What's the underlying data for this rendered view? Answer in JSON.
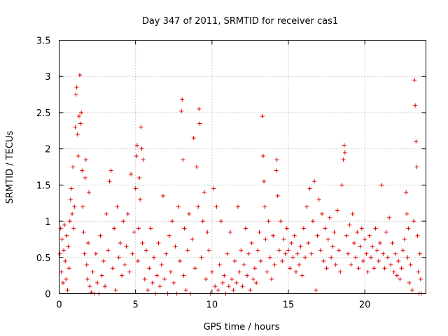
{
  "chart_data": {
    "type": "scatter",
    "title": "Day 347 of 2011, SRMTID for receiver cas1",
    "xlabel": "GPS time / hours",
    "ylabel": "SRMTID / TECUs",
    "xlim": [
      0,
      24
    ],
    "ylim": [
      0,
      3.5
    ],
    "x_ticks": [
      0,
      5,
      10,
      15,
      20
    ],
    "x_tick_labels": [
      "0",
      "5",
      "10",
      "15",
      "20"
    ],
    "y_ticks": [
      0,
      0.5,
      1,
      1.5,
      2,
      2.5,
      3,
      3.5
    ],
    "y_tick_labels": [
      "0",
      "0.5",
      "1",
      "1.5",
      "2",
      "2.5",
      "3",
      "3.5"
    ],
    "grid": true,
    "marker": "+",
    "series": [
      {
        "name": "SRMTID",
        "color": "#e00000",
        "points": [
          [
            0.05,
            0.55
          ],
          [
            0.1,
            0.9
          ],
          [
            0.15,
            0.3
          ],
          [
            0.2,
            0.75
          ],
          [
            0.25,
            0.15
          ],
          [
            0.3,
            0.6
          ],
          [
            0.35,
            0.95
          ],
          [
            0.4,
            0.45
          ],
          [
            0.45,
            0.2
          ],
          [
            0.5,
            0.8
          ],
          [
            0.55,
            0.05
          ],
          [
            0.6,
            0.65
          ],
          [
            0.65,
            0.35
          ],
          [
            0.7,
            1.0
          ],
          [
            0.75,
            1.3
          ],
          [
            0.8,
            1.45
          ],
          [
            0.85,
            1.1
          ],
          [
            0.9,
            1.75
          ],
          [
            0.95,
            0.9
          ],
          [
            1.0,
            1.2
          ],
          [
            1.05,
            2.3
          ],
          [
            1.1,
            2.75
          ],
          [
            1.15,
            2.85
          ],
          [
            1.2,
            2.2
          ],
          [
            1.25,
            1.9
          ],
          [
            1.3,
            2.45
          ],
          [
            1.35,
            3.02
          ],
          [
            1.4,
            2.35
          ],
          [
            1.45,
            2.5
          ],
          [
            1.5,
            1.7
          ],
          [
            1.55,
            1.2
          ],
          [
            1.6,
            0.85
          ],
          [
            1.65,
            0.55
          ],
          [
            1.7,
            1.6
          ],
          [
            1.75,
            1.85
          ],
          [
            1.8,
            0.4
          ],
          [
            1.85,
            0.2
          ],
          [
            1.9,
            0.7
          ],
          [
            1.95,
            1.4
          ],
          [
            2.0,
            0.1
          ],
          [
            2.1,
            0.02
          ],
          [
            2.2,
            0.3
          ],
          [
            2.3,
            0.0
          ],
          [
            2.4,
            0.55
          ],
          [
            2.5,
            0.15
          ],
          [
            2.6,
            0.0
          ],
          [
            2.7,
            0.8
          ],
          [
            2.8,
            0.25
          ],
          [
            2.9,
            0.45
          ],
          [
            3.0,
            0.1
          ],
          [
            3.1,
            1.1
          ],
          [
            3.2,
            0.6
          ],
          [
            3.3,
            1.55
          ],
          [
            3.4,
            1.7
          ],
          [
            3.5,
            0.35
          ],
          [
            3.6,
            0.9
          ],
          [
            3.7,
            0.05
          ],
          [
            3.8,
            1.2
          ],
          [
            3.9,
            0.5
          ],
          [
            4.0,
            0.7
          ],
          [
            4.1,
            0.25
          ],
          [
            4.2,
            1.0
          ],
          [
            4.3,
            0.4
          ],
          [
            4.4,
            0.65
          ],
          [
            4.5,
            1.1
          ],
          [
            4.6,
            0.3
          ],
          [
            4.7,
            1.65
          ],
          [
            4.8,
            0.55
          ],
          [
            4.9,
            0.85
          ],
          [
            5.0,
            1.45
          ],
          [
            5.05,
            1.9
          ],
          [
            5.1,
            2.05
          ],
          [
            5.15,
            0.45
          ],
          [
            5.2,
            0.9
          ],
          [
            5.25,
            1.6
          ],
          [
            5.3,
            1.3
          ],
          [
            5.35,
            2.3
          ],
          [
            5.4,
            2.0
          ],
          [
            5.45,
            0.7
          ],
          [
            5.5,
            1.85
          ],
          [
            5.6,
            0.2
          ],
          [
            5.7,
            0.6
          ],
          [
            5.8,
            0.05
          ],
          [
            5.9,
            0.35
          ],
          [
            6.0,
            0.9
          ],
          [
            6.1,
            0.15
          ],
          [
            6.2,
            0.5
          ],
          [
            6.3,
            0.0
          ],
          [
            6.4,
            0.25
          ],
          [
            6.5,
            0.7
          ],
          [
            6.6,
            0.1
          ],
          [
            6.7,
            0.4
          ],
          [
            6.8,
            1.35
          ],
          [
            6.9,
            0.2
          ],
          [
            7.0,
            0.55
          ],
          [
            7.1,
            0.0
          ],
          [
            7.2,
            0.8
          ],
          [
            7.3,
            0.3
          ],
          [
            7.4,
            1.0
          ],
          [
            7.5,
            0.15
          ],
          [
            7.6,
            0.65
          ],
          [
            7.7,
            0.0
          ],
          [
            7.8,
            1.2
          ],
          [
            7.9,
            0.45
          ],
          [
            8.0,
            2.52
          ],
          [
            8.05,
            2.68
          ],
          [
            8.1,
            1.85
          ],
          [
            8.15,
            0.25
          ],
          [
            8.2,
            0.9
          ],
          [
            8.3,
            0.05
          ],
          [
            8.4,
            0.6
          ],
          [
            8.5,
            1.1
          ],
          [
            8.6,
            0.0
          ],
          [
            8.7,
            0.75
          ],
          [
            8.8,
            2.15
          ],
          [
            8.9,
            0.35
          ],
          [
            9.0,
            1.75
          ],
          [
            9.1,
            1.2
          ],
          [
            9.15,
            2.55
          ],
          [
            9.2,
            2.35
          ],
          [
            9.3,
            0.5
          ],
          [
            9.4,
            1.0
          ],
          [
            9.5,
            1.4
          ],
          [
            9.6,
            0.2
          ],
          [
            9.7,
            0.85
          ],
          [
            9.8,
            0.6
          ],
          [
            9.9,
            0.0
          ],
          [
            10.0,
            0.3
          ],
          [
            10.1,
            1.45
          ],
          [
            10.2,
            0.1
          ],
          [
            10.3,
            1.2
          ],
          [
            10.4,
            0.05
          ],
          [
            10.5,
            0.4
          ],
          [
            10.6,
            1.0
          ],
          [
            10.7,
            0.15
          ],
          [
            10.8,
            0.25
          ],
          [
            10.9,
            0.0
          ],
          [
            11.0,
            0.55
          ],
          [
            11.1,
            0.1
          ],
          [
            11.2,
            0.85
          ],
          [
            11.3,
            0.2
          ],
          [
            11.4,
            0.05
          ],
          [
            11.5,
            0.45
          ],
          [
            11.6,
            0.15
          ],
          [
            11.7,
            1.2
          ],
          [
            11.8,
            0.3
          ],
          [
            11.9,
            0.6
          ],
          [
            12.0,
            0.1
          ],
          [
            12.1,
            0.4
          ],
          [
            12.2,
            0.9
          ],
          [
            12.3,
            0.25
          ],
          [
            12.4,
            0.55
          ],
          [
            12.5,
            0.05
          ],
          [
            12.6,
            0.7
          ],
          [
            12.7,
            0.2
          ],
          [
            12.8,
            0.35
          ],
          [
            12.9,
            0.15
          ],
          [
            13.0,
            0.6
          ],
          [
            13.1,
            0.85
          ],
          [
            13.2,
            0.45
          ],
          [
            13.3,
            2.45
          ],
          [
            13.35,
            1.9
          ],
          [
            13.4,
            1.55
          ],
          [
            13.45,
            1.2
          ],
          [
            13.5,
            0.75
          ],
          [
            13.6,
            0.3
          ],
          [
            13.7,
            1.0
          ],
          [
            13.8,
            0.5
          ],
          [
            13.9,
            0.2
          ],
          [
            14.0,
            0.8
          ],
          [
            14.1,
            0.4
          ],
          [
            14.2,
            1.7
          ],
          [
            14.25,
            1.85
          ],
          [
            14.3,
            1.35
          ],
          [
            14.4,
            0.6
          ],
          [
            14.5,
            1.0
          ],
          [
            14.6,
            0.45
          ],
          [
            14.7,
            0.75
          ],
          [
            14.8,
            0.55
          ],
          [
            14.9,
            0.9
          ],
          [
            15.0,
            0.6
          ],
          [
            15.1,
            0.35
          ],
          [
            15.2,
            0.7
          ],
          [
            15.3,
            0.5
          ],
          [
            15.4,
            0.8
          ],
          [
            15.5,
            0.3
          ],
          [
            15.6,
            0.55
          ],
          [
            15.7,
            0.4
          ],
          [
            15.8,
            0.65
          ],
          [
            15.9,
            0.25
          ],
          [
            16.0,
            0.9
          ],
          [
            16.1,
            0.5
          ],
          [
            16.2,
            1.2
          ],
          [
            16.3,
            0.7
          ],
          [
            16.4,
            1.45
          ],
          [
            16.5,
            0.55
          ],
          [
            16.6,
            1.0
          ],
          [
            16.7,
            1.55
          ],
          [
            16.8,
            0.05
          ],
          [
            16.9,
            0.8
          ],
          [
            17.0,
            1.3
          ],
          [
            17.1,
            0.6
          ],
          [
            17.2,
            1.1
          ],
          [
            17.3,
            0.45
          ],
          [
            17.4,
            0.9
          ],
          [
            17.5,
            0.35
          ],
          [
            17.6,
            0.75
          ],
          [
            17.7,
            1.05
          ],
          [
            17.8,
            0.5
          ],
          [
            17.9,
            0.65
          ],
          [
            18.0,
            0.85
          ],
          [
            18.1,
            0.4
          ],
          [
            18.2,
            1.15
          ],
          [
            18.3,
            0.6
          ],
          [
            18.4,
            0.3
          ],
          [
            18.5,
            1.5
          ],
          [
            18.6,
            1.85
          ],
          [
            18.65,
            2.05
          ],
          [
            18.7,
            1.95
          ],
          [
            18.8,
            0.8
          ],
          [
            18.9,
            0.55
          ],
          [
            19.0,
            0.95
          ],
          [
            19.1,
            0.4
          ],
          [
            19.2,
            1.1
          ],
          [
            19.3,
            0.7
          ],
          [
            19.4,
            0.5
          ],
          [
            19.5,
            0.85
          ],
          [
            19.6,
            0.35
          ],
          [
            19.7,
            0.65
          ],
          [
            19.8,
            0.9
          ],
          [
            19.9,
            0.45
          ],
          [
            20.0,
            0.75
          ],
          [
            20.1,
            0.55
          ],
          [
            20.2,
            0.3
          ],
          [
            20.3,
            0.8
          ],
          [
            20.4,
            0.5
          ],
          [
            20.5,
            0.65
          ],
          [
            20.6,
            0.35
          ],
          [
            20.7,
            0.9
          ],
          [
            20.8,
            0.6
          ],
          [
            20.9,
            0.45
          ],
          [
            21.0,
            0.7
          ],
          [
            21.1,
            1.5
          ],
          [
            21.2,
            0.55
          ],
          [
            21.3,
            0.35
          ],
          [
            21.4,
            0.85
          ],
          [
            21.5,
            0.5
          ],
          [
            21.6,
            1.05
          ],
          [
            21.7,
            0.4
          ],
          [
            21.8,
            0.7
          ],
          [
            21.9,
            0.3
          ],
          [
            22.0,
            0.55
          ],
          [
            22.1,
            0.25
          ],
          [
            22.2,
            0.45
          ],
          [
            22.3,
            0.2
          ],
          [
            22.4,
            0.35
          ],
          [
            22.5,
            0.6
          ],
          [
            22.6,
            0.75
          ],
          [
            22.7,
            1.4
          ],
          [
            22.75,
            1.1
          ],
          [
            22.8,
            0.5
          ],
          [
            22.85,
            0.9
          ],
          [
            22.9,
            0.15
          ],
          [
            23.0,
            0.4
          ],
          [
            23.1,
            0.05
          ],
          [
            23.2,
            1.0
          ],
          [
            23.25,
            2.95
          ],
          [
            23.3,
            2.6
          ],
          [
            23.35,
            2.1
          ],
          [
            23.4,
            1.75
          ],
          [
            23.45,
            0.8
          ],
          [
            23.5,
            0.3
          ],
          [
            23.55,
            0.0
          ],
          [
            23.6,
            0.55
          ],
          [
            23.65,
            0.2
          ],
          [
            23.7,
            0.0
          ]
        ]
      }
    ]
  }
}
